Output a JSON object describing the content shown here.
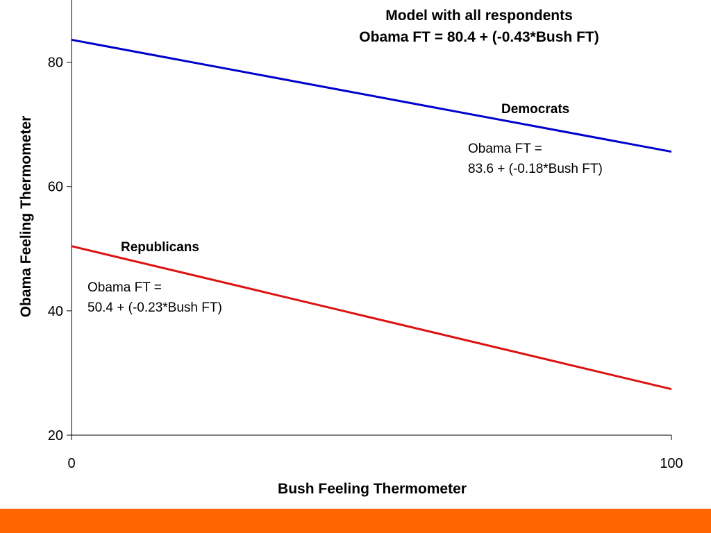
{
  "chart_data": {
    "type": "line",
    "title": [
      "Model with all respondents",
      "Obama FT = 80.4 + (-0.43*Bush FT)"
    ],
    "xlabel": "Bush Feeling Thermometer",
    "ylabel": "Obama Feeling Thermometer",
    "xlim": [
      0,
      100
    ],
    "ylim": [
      20,
      90
    ],
    "x_ticks": [
      0,
      100
    ],
    "y_ticks": [
      20,
      40,
      60,
      80
    ],
    "grid": false,
    "legend": "none",
    "series": [
      {
        "name": "Democrats",
        "color": "#0000cc",
        "x": [
          0,
          100
        ],
        "y": [
          83.6,
          65.6
        ],
        "equation": [
          "Obama FT =",
          "83.6 + (-0.18*Bush FT)"
        ]
      },
      {
        "name": "Republicans",
        "color": "#dd1111",
        "x": [
          0,
          100
        ],
        "y": [
          50.4,
          27.4
        ],
        "equation": [
          "Obama FT =",
          "50.4 + (-0.23*Bush FT)"
        ]
      }
    ]
  },
  "footer": {
    "color": "#ff6600"
  }
}
